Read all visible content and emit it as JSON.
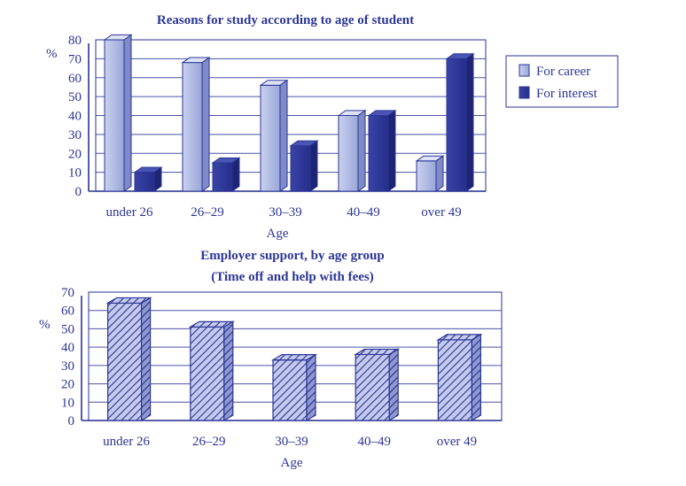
{
  "chart_data": [
    {
      "type": "bar",
      "title": "Reasons for study according to age of student",
      "xlabel": "Age",
      "ylabel": "%",
      "ylim": [
        0,
        80
      ],
      "yticks": [
        "0",
        "10",
        "20",
        "30",
        "40",
        "50",
        "60",
        "70",
        "80"
      ],
      "categories": [
        "under 26",
        "26–29",
        "30–39",
        "40–49",
        "over 49"
      ],
      "series": [
        {
          "name": "For career",
          "values": [
            80,
            68,
            56,
            40,
            16
          ]
        },
        {
          "name": "For interest",
          "values": [
            10,
            15,
            24,
            40,
            70
          ]
        }
      ],
      "legend": "right",
      "grid": true,
      "colors": {
        "For career": "#b9c3e6",
        "For interest": "#2b3596"
      }
    },
    {
      "type": "bar",
      "title": "Employer support, by age group",
      "subtitle": "(Time off and help with fees)",
      "xlabel": "Age",
      "ylabel": "%",
      "ylim": [
        0,
        70
      ],
      "yticks": [
        "0",
        "10",
        "20",
        "30",
        "40",
        "50",
        "60",
        "70"
      ],
      "categories": [
        "under 26",
        "26–29",
        "30–39",
        "40–49",
        "over 49"
      ],
      "series": [
        {
          "values": [
            64,
            51,
            33,
            36,
            44
          ]
        }
      ],
      "grid": true,
      "pattern": "diagonal-hatch",
      "colors": {
        "bar": "#9aa3d8",
        "hatch": "#2b3596"
      }
    }
  ]
}
